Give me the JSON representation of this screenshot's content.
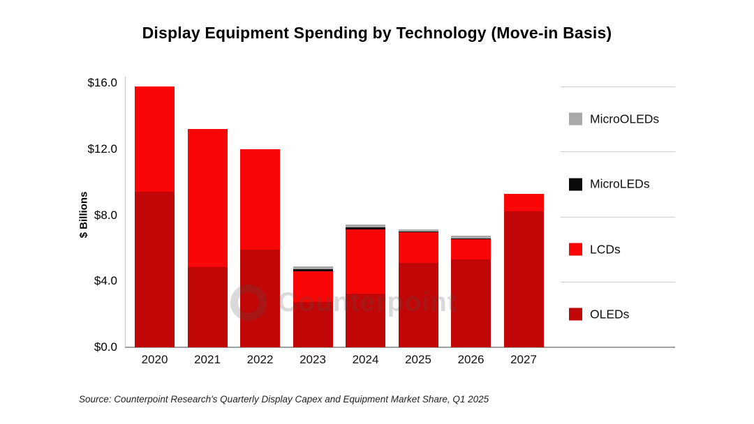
{
  "title": "Display Equipment Spending by Technology (Move-in Basis)",
  "source_note": "Source: Counterpoint Research's Quarterly Display Capex and Equipment Market Share, Q1 2025",
  "watermark": {
    "text": "Counterpoint"
  },
  "chart_data": {
    "type": "bar",
    "stacked": true,
    "title": "Display Equipment Spending by Technology (Move-in Basis)",
    "xlabel": "",
    "ylabel": "$ Billions",
    "ylim": [
      0,
      16
    ],
    "grid": false,
    "categories": [
      "2020",
      "2021",
      "2022",
      "2023",
      "2024",
      "2025",
      "2026",
      "2027"
    ],
    "series": [
      {
        "name": "OLEDs",
        "color": "#c00606",
        "values": [
          9.4,
          4.85,
          5.9,
          2.75,
          3.25,
          5.1,
          5.3,
          8.25
        ]
      },
      {
        "name": "LCDs",
        "color": "#fa0606",
        "values": [
          6.4,
          8.35,
          6.1,
          1.85,
          3.9,
          1.85,
          1.25,
          1.05
        ]
      },
      {
        "name": "MicroLEDs",
        "color": "#0b0b0b",
        "values": [
          0,
          0,
          0,
          0.12,
          0.12,
          0.06,
          0.05,
          0
        ]
      },
      {
        "name": "MicroOLEDs",
        "color": "#a9a9a9",
        "values": [
          0,
          0,
          0,
          0.18,
          0.18,
          0.12,
          0.15,
          0
        ]
      }
    ],
    "totals": [
      15.8,
      13.2,
      12.0,
      4.9,
      7.45,
      7.13,
      6.75,
      9.3
    ],
    "yticks": {
      "values": [
        0,
        4,
        8,
        12,
        16
      ],
      "labels": [
        "$0.0",
        "$4.0",
        "$8.0",
        "$12.0",
        "$16.0"
      ]
    },
    "legend": {
      "position": "right",
      "order": [
        "MicroOLEDs",
        "MicroLEDs",
        "LCDs",
        "OLEDs"
      ]
    }
  }
}
